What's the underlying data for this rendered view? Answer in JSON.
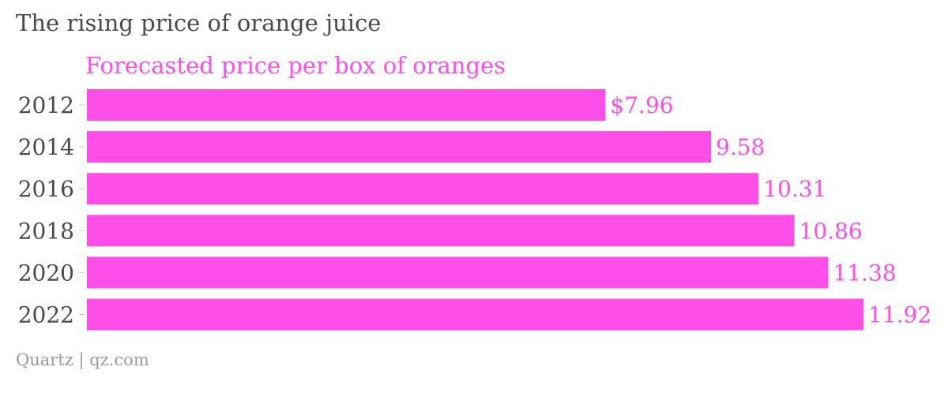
{
  "title": "The rising price of orange juice",
  "source": "Quartz | qz.com",
  "colors": {
    "bar": "#ff4ee8",
    "text": "#4a4a4a",
    "axis": "#cccccc",
    "source": "#9a9a9a"
  },
  "chart_data": {
    "type": "bar",
    "orientation": "horizontal",
    "categories": [
      "2012",
      "2014",
      "2016",
      "2018",
      "2020",
      "2022"
    ],
    "series": [
      {
        "name": "Forecasted price per box of oranges",
        "values": [
          7.96,
          9.58,
          10.31,
          10.86,
          11.38,
          11.92
        ]
      }
    ],
    "value_labels": [
      "$7.96",
      "9.58",
      "10.31",
      "10.86",
      "11.38",
      "11.92"
    ],
    "title": "The rising price of orange juice",
    "xlabel": "",
    "ylabel": "",
    "xlim": [
      0,
      11.92
    ],
    "grid": false,
    "legend": "top-left"
  }
}
